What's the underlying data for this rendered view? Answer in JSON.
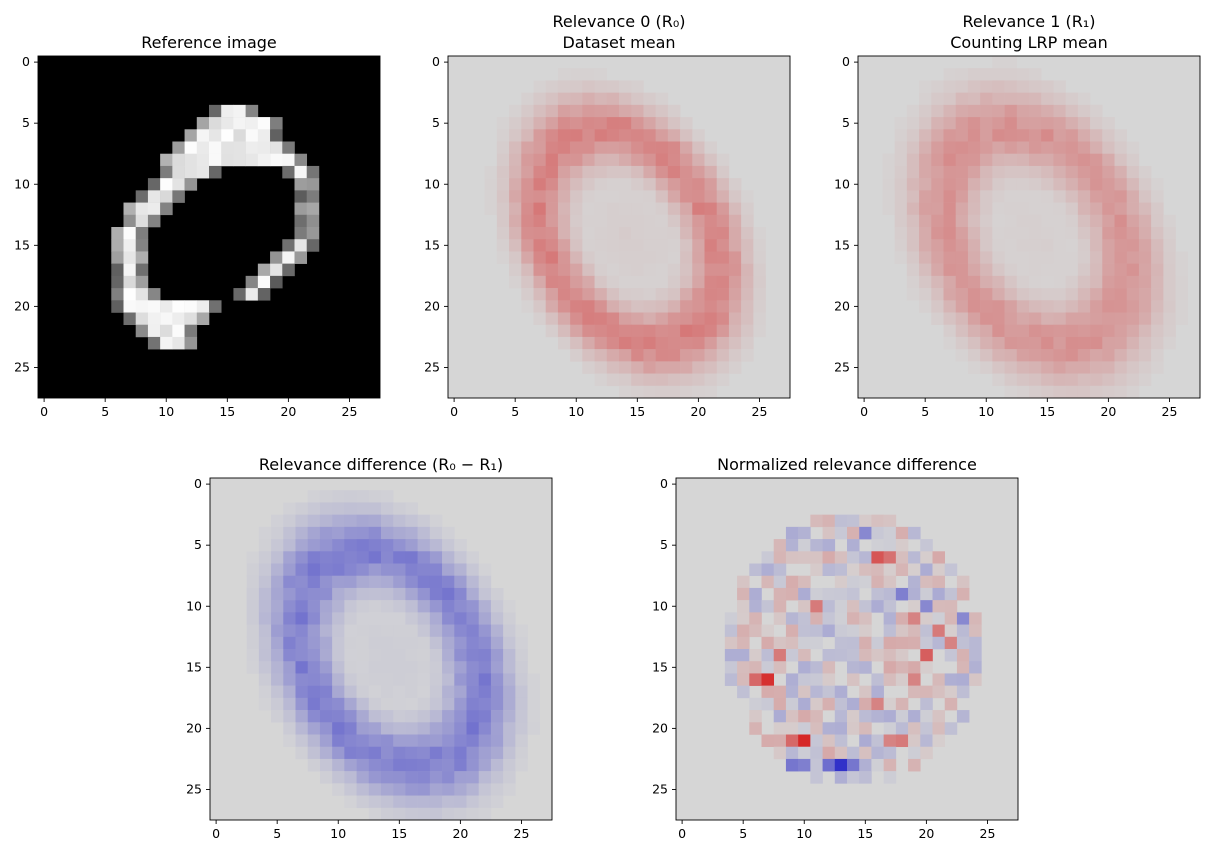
{
  "chart_data": [
    {
      "type": "heatmap",
      "id": "panel-reference",
      "title_lines": [
        "Reference image"
      ],
      "colormap": "gray",
      "background": "#000000",
      "xlim": [
        -0.5,
        27.5
      ],
      "ylim": [
        27.5,
        -0.5
      ],
      "xticks": [
        0,
        5,
        10,
        15,
        20,
        25
      ],
      "yticks": [
        0,
        5,
        10,
        15,
        20,
        25
      ],
      "row_spans": [
        [
          [
            4,
            14,
            17
          ]
        ],
        [
          [
            5,
            13,
            19
          ]
        ],
        [
          [
            6,
            12,
            19
          ]
        ],
        [
          [
            7,
            11,
            20
          ]
        ],
        [
          [
            8,
            10,
            21
          ]
        ],
        [
          [
            9,
            10,
            14
          ],
          [
            17,
            20,
            22
          ]
        ],
        [
          [
            10,
            9,
            12
          ],
          [
            19,
            21,
            22
          ]
        ],
        [
          [
            11,
            8,
            11
          ],
          [
            19,
            21,
            22
          ]
        ],
        [
          [
            12,
            7,
            10
          ],
          [
            19,
            21,
            22
          ]
        ],
        [
          [
            13,
            7,
            9
          ],
          [
            19,
            21,
            22
          ]
        ],
        [
          [
            14,
            6,
            8
          ],
          [
            19,
            21,
            22
          ]
        ],
        [
          [
            15,
            6,
            8
          ],
          [
            18,
            20,
            22
          ]
        ],
        [
          [
            16,
            6,
            8
          ],
          [
            17,
            19,
            21
          ]
        ],
        [
          [
            17,
            6,
            8
          ],
          [
            15,
            18,
            20
          ]
        ],
        [
          [
            18,
            6,
            8
          ],
          [
            13,
            17,
            19
          ]
        ],
        [
          [
            19,
            6,
            9
          ],
          [
            10,
            16,
            18
          ]
        ],
        [
          [
            20,
            6,
            14
          ]
        ],
        [
          [
            21,
            7,
            13
          ]
        ],
        [
          [
            22,
            8,
            12
          ]
        ],
        [
          [
            23,
            9,
            12
          ]
        ]
      ]
    },
    {
      "type": "heatmap",
      "id": "panel-relevance0",
      "title_lines": [
        "Relevance 0 (R₀)",
        "Dataset mean"
      ],
      "colormap": "coolwarm",
      "background": "#d6d6d6",
      "xlim": [
        -0.5,
        27.5
      ],
      "ylim": [
        27.5,
        -0.5
      ],
      "xticks": [
        0,
        5,
        10,
        15,
        20,
        25
      ],
      "yticks": [
        0,
        5,
        10,
        15,
        20,
        25
      ],
      "shape": {
        "center": [
          14.3,
          14.3
        ],
        "rx": 6.6,
        "ry": 9.4,
        "angle_deg": 30,
        "thickness": 2.8
      },
      "peak": 0.45,
      "sign": 1
    },
    {
      "type": "heatmap",
      "id": "panel-relevance1",
      "title_lines": [
        "Relevance 1 (R₁)",
        "Counting LRP mean"
      ],
      "colormap": "coolwarm",
      "background": "#d6d6d6",
      "xlim": [
        -0.5,
        27.5
      ],
      "ylim": [
        27.5,
        -0.5
      ],
      "xticks": [
        0,
        5,
        10,
        15,
        20,
        25
      ],
      "yticks": [
        0,
        5,
        10,
        15,
        20,
        25
      ],
      "shape": {
        "center": [
          14.0,
          14.3
        ],
        "rx": 6.8,
        "ry": 9.5,
        "angle_deg": 30,
        "thickness": 3.3
      },
      "peak": 0.36,
      "sign": 1
    },
    {
      "type": "heatmap",
      "id": "panel-difference",
      "title_lines": [
        "Relevance difference (R₀ − R₁)"
      ],
      "colormap": "coolwarm",
      "background": "#d6d6d6",
      "xlim": [
        -0.5,
        27.5
      ],
      "ylim": [
        27.5,
        -0.5
      ],
      "xticks": [
        0,
        5,
        10,
        15,
        20,
        25
      ],
      "yticks": [
        0,
        5,
        10,
        15,
        20,
        25
      ],
      "shape": {
        "center": [
          14.2,
          14.3
        ],
        "rx": 6.7,
        "ry": 9.4,
        "angle_deg": 30,
        "thickness": 3.1
      },
      "peak": 0.5,
      "sign": -1
    },
    {
      "type": "heatmap",
      "id": "panel-normalized",
      "title_lines": [
        "Normalized relevance difference"
      ],
      "colormap": "coolwarm",
      "background": "#d6d6d6",
      "xlim": [
        -0.5,
        27.5
      ],
      "ylim": [
        27.5,
        -0.5
      ],
      "xticks": [
        0,
        5,
        10,
        15,
        20,
        25
      ],
      "yticks": [
        0,
        5,
        10,
        15,
        20,
        25
      ],
      "region": {
        "x": [
          4,
          24
        ],
        "y": [
          3,
          24
        ]
      },
      "strong_cells": [
        [
          7,
          16,
          0.9
        ],
        [
          6,
          16,
          0.6
        ],
        [
          10,
          21,
          0.95
        ],
        [
          9,
          21,
          0.6
        ],
        [
          13,
          23,
          -0.95
        ],
        [
          12,
          23,
          -0.6
        ],
        [
          14,
          23,
          -0.55
        ],
        [
          16,
          6,
          0.7
        ],
        [
          17,
          6,
          0.55
        ],
        [
          20,
          14,
          0.65
        ],
        [
          21,
          12,
          0.5
        ],
        [
          8,
          14,
          0.5
        ],
        [
          11,
          10,
          0.5
        ],
        [
          19,
          11,
          0.45
        ],
        [
          22,
          13,
          0.45
        ],
        [
          18,
          9,
          -0.5
        ],
        [
          20,
          10,
          -0.45
        ],
        [
          23,
          11,
          -0.45
        ],
        [
          15,
          4,
          -0.45
        ],
        [
          5,
          20,
          -0.45
        ],
        [
          9,
          23,
          -0.55
        ],
        [
          7,
          23,
          -0.5
        ],
        [
          10,
          23,
          -0.5
        ],
        [
          16,
          18,
          0.45
        ],
        [
          19,
          16,
          0.45
        ],
        [
          18,
          21,
          0.5
        ],
        [
          17,
          21,
          0.45
        ]
      ]
    }
  ]
}
